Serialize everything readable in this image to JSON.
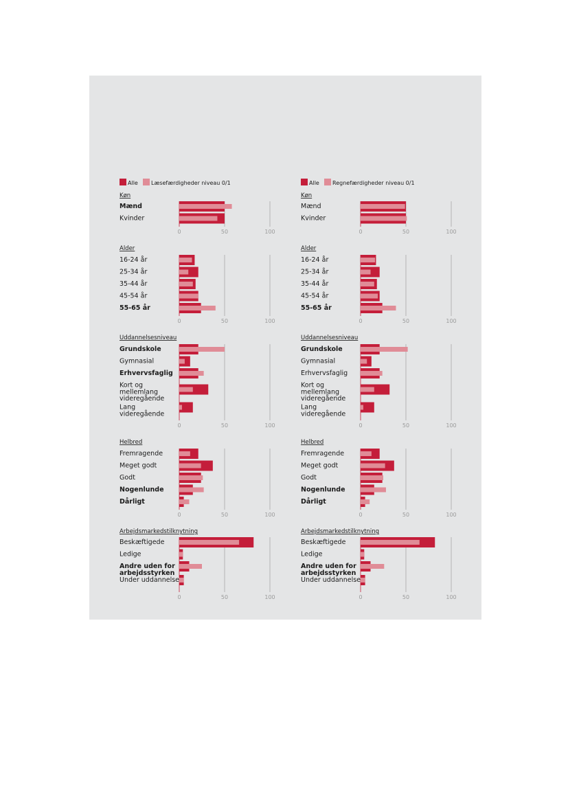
{
  "colors": {
    "all": "#c41e3a",
    "low": "#e08c97",
    "panel": "#e4e5e6",
    "axis": "#a8a8a8"
  },
  "xaxis": {
    "ticks": [
      0,
      50,
      100
    ],
    "xlim": [
      0,
      100
    ]
  },
  "chart_data": [
    {
      "type": "bar",
      "orientation": "horizontal",
      "legend": [
        "Alle",
        "Læsefærdigheder niveau 0/1"
      ],
      "groups": [
        {
          "title": "Køn",
          "rows": [
            {
              "label": "Mænd",
              "bold": true,
              "all": 50,
              "low": 58
            },
            {
              "label": "Kvinder",
              "bold": false,
              "all": 50,
              "low": 42
            }
          ]
        },
        {
          "title": "Alder",
          "rows": [
            {
              "label": "16-24 år",
              "bold": false,
              "all": 17,
              "low": 14
            },
            {
              "label": "25-34 år",
              "bold": false,
              "all": 21,
              "low": 10
            },
            {
              "label": "35-44 år",
              "bold": false,
              "all": 18,
              "low": 15
            },
            {
              "label": "45-54 år",
              "bold": false,
              "all": 21,
              "low": 21
            },
            {
              "label": "55-65 år",
              "bold": true,
              "all": 24,
              "low": 40
            }
          ]
        },
        {
          "title": "Uddannelsesniveau",
          "rows": [
            {
              "label": "Grundskole",
              "bold": true,
              "all": 21,
              "low": 50
            },
            {
              "label": "Gymnasial",
              "bold": false,
              "all": 12,
              "low": 6
            },
            {
              "label": "Erhvervsfaglig",
              "bold": true,
              "all": 21,
              "low": 27
            },
            {
              "label": "Kort og mellemlang videregående",
              "bold": false,
              "all": 32,
              "low": 15
            },
            {
              "label": "Lang videregående",
              "bold": false,
              "all": 15,
              "low": 3
            }
          ]
        },
        {
          "title": "Helbred",
          "rows": [
            {
              "label": "Fremragende",
              "bold": false,
              "all": 21,
              "low": 12
            },
            {
              "label": "Meget godt",
              "bold": false,
              "all": 37,
              "low": 24
            },
            {
              "label": "Godt",
              "bold": false,
              "all": 24,
              "low": 26
            },
            {
              "label": "Nogenlunde",
              "bold": true,
              "all": 15,
              "low": 27
            },
            {
              "label": "Dårligt",
              "bold": true,
              "all": 5,
              "low": 11
            }
          ]
        },
        {
          "title": "Arbejdsmarkedstilknytning",
          "rows": [
            {
              "label": "Beskæftigede",
              "bold": false,
              "all": 82,
              "low": 66
            },
            {
              "label": "Ledige",
              "bold": false,
              "all": 4,
              "low": 4
            },
            {
              "label": "Andre uden for arbejdsstyrken",
              "bold": true,
              "all": 11,
              "low": 25
            },
            {
              "label": "Under uddannelse",
              "bold": false,
              "all": 5,
              "low": 5
            }
          ]
        }
      ]
    },
    {
      "type": "bar",
      "orientation": "horizontal",
      "legend": [
        "Alle",
        "Regnefærdigheder niveau 0/1"
      ],
      "groups": [
        {
          "title": "Køn",
          "rows": [
            {
              "label": "Mænd",
              "bold": false,
              "all": 50,
              "low": 49
            },
            {
              "label": "Kvinder",
              "bold": false,
              "all": 50,
              "low": 51
            }
          ]
        },
        {
          "title": "Alder",
          "rows": [
            {
              "label": "16-24 år",
              "bold": false,
              "all": 17,
              "low": 16
            },
            {
              "label": "25-34 år",
              "bold": false,
              "all": 21,
              "low": 11
            },
            {
              "label": "35-44 år",
              "bold": false,
              "all": 18,
              "low": 15
            },
            {
              "label": "45-54 år",
              "bold": false,
              "all": 21,
              "low": 19
            },
            {
              "label": "55-65 år",
              "bold": true,
              "all": 24,
              "low": 39
            }
          ]
        },
        {
          "title": "Uddannelsesniveau",
          "rows": [
            {
              "label": "Grundskole",
              "bold": true,
              "all": 21,
              "low": 52
            },
            {
              "label": "Gymnasial",
              "bold": false,
              "all": 12,
              "low": 7
            },
            {
              "label": "Erhvervsfaglig",
              "bold": false,
              "all": 21,
              "low": 24
            },
            {
              "label": "Kort og mellemlang videregående",
              "bold": false,
              "all": 32,
              "low": 15
            },
            {
              "label": "Lang videregående",
              "bold": false,
              "all": 15,
              "low": 3
            }
          ]
        },
        {
          "title": "Helbred",
          "rows": [
            {
              "label": "Fremragende",
              "bold": false,
              "all": 21,
              "low": 12
            },
            {
              "label": "Meget godt",
              "bold": false,
              "all": 37,
              "low": 27
            },
            {
              "label": "Godt",
              "bold": false,
              "all": 24,
              "low": 25
            },
            {
              "label": "Nogenlunde",
              "bold": true,
              "all": 15,
              "low": 28
            },
            {
              "label": "Dårligt",
              "bold": true,
              "all": 5,
              "low": 10
            }
          ]
        },
        {
          "title": "Arbejdsmarkedstilknytning",
          "rows": [
            {
              "label": "Beskæftigede",
              "bold": false,
              "all": 82,
              "low": 65
            },
            {
              "label": "Ledige",
              "bold": false,
              "all": 4,
              "low": 4
            },
            {
              "label": "Andre uden for arbejdsstyrken",
              "bold": true,
              "all": 11,
              "low": 26
            },
            {
              "label": "Under uddannelse",
              "bold": false,
              "all": 5,
              "low": 5
            }
          ]
        }
      ]
    }
  ]
}
